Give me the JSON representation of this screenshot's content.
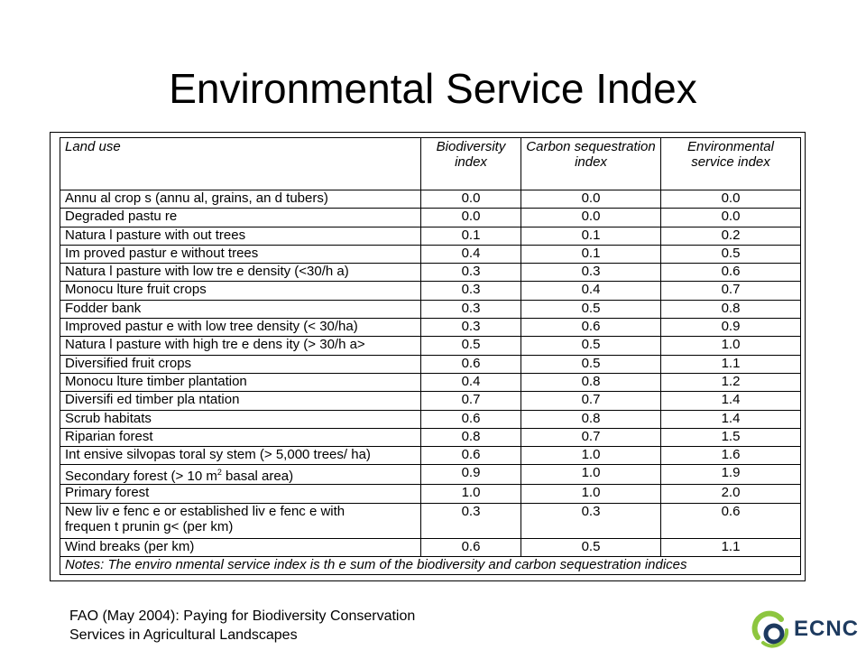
{
  "slide": {
    "title": "Environmental Service Index"
  },
  "table": {
    "headers": {
      "land_use": "Land use",
      "biodiversity": "Biodiversity index",
      "carbon": "Carbon sequestration index",
      "service": "Environmental service index"
    },
    "rows": [
      {
        "land_use": "Annu al crop s (annu al, grains, an d tubers)",
        "biodiversity": "0.0",
        "carbon": "0.0",
        "service": "0.0"
      },
      {
        "land_use": "Degraded pastu re",
        "biodiversity": "0.0",
        "carbon": "0.0",
        "service": "0.0"
      },
      {
        "land_use": "Natura l pasture with out trees",
        "biodiversity": "0.1",
        "carbon": "0.1",
        "service": "0.2"
      },
      {
        "land_use": "Im proved pastur e without trees",
        "biodiversity": "0.4",
        "carbon": "0.1",
        "service": "0.5"
      },
      {
        "land_use": "Natura l pasture with low tre e density (<30/h a)",
        "biodiversity": "0.3",
        "carbon": "0.3",
        "service": "0.6"
      },
      {
        "land_use": "Monocu lture fruit crops",
        "biodiversity": "0.3",
        "carbon": "0.4",
        "service": "0.7"
      },
      {
        "land_use": "Fodder bank",
        "biodiversity": "0.3",
        "carbon": "0.5",
        "service": "0.8"
      },
      {
        "land_use": "Improved pastur e with low tree density (< 30/ha)",
        "biodiversity": "0.3",
        "carbon": "0.6",
        "service": "0.9"
      },
      {
        "land_use": "Natura l pasture with high tre e dens ity (> 30/h a>",
        "biodiversity": "0.5",
        "carbon": "0.5",
        "service": "1.0"
      },
      {
        "land_use": "Diversified fruit crops",
        "biodiversity": "0.6",
        "carbon": "0.5",
        "service": "1.1"
      },
      {
        "land_use": "Monocu lture timber plantation",
        "biodiversity": "0.4",
        "carbon": "0.8",
        "service": "1.2"
      },
      {
        "land_use": "Diversifi ed timber pla ntation",
        "biodiversity": "0.7",
        "carbon": "0.7",
        "service": "1.4"
      },
      {
        "land_use": "Scrub habitats",
        "biodiversity": "0.6",
        "carbon": "0.8",
        "service": "1.4"
      },
      {
        "land_use": "Riparian forest",
        "biodiversity": "0.8",
        "carbon": "0.7",
        "service": "1.5"
      },
      {
        "land_use": "Int ensive silvopas toral sy stem (> 5,000 trees/ ha)",
        "biodiversity": "0.6",
        "carbon": "1.0",
        "service": "1.6"
      },
      {
        "land_use": "Secondary forest (> 10 m",
        "land_use_sup": "2",
        "land_use_tail": " basal area)",
        "biodiversity": "0.9",
        "carbon": "1.0",
        "service": "1.9"
      },
      {
        "land_use": "Primary forest",
        "biodiversity": "1.0",
        "carbon": "1.0",
        "service": "2.0"
      },
      {
        "land_use_line1": "New liv e fenc e or established liv e fenc e with",
        "land_use_line2": "frequen t prunin g< (per km)",
        "biodiversity": "0.3",
        "carbon": "0.3",
        "service": "0.6"
      },
      {
        "land_use": "Wind breaks (per km)",
        "biodiversity": "0.6",
        "carbon": "0.5",
        "service": "1.1"
      }
    ],
    "note": "Notes: The enviro nmental service index is th e sum of the biodiversity and carbon sequestration indices"
  },
  "footer": {
    "citation_line1": "FAO (May 2004): Paying for Biodiversity Conservation",
    "citation_line2": "Services in Agricultural Landscapes",
    "logo_text": "ECNC",
    "logo_colors": {
      "arc_green": "#8dc63f",
      "ring_blue": "#1d3a5f"
    }
  }
}
